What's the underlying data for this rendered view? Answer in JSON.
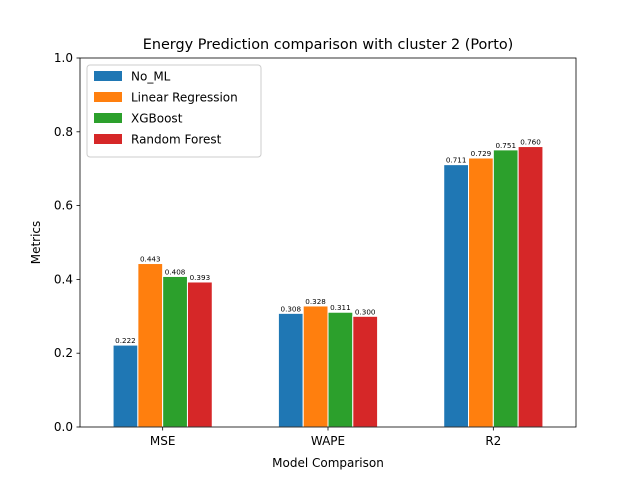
{
  "chart_data": {
    "type": "bar",
    "title": "Energy Prediction comparison with cluster 2 (Porto)",
    "xlabel": "Model Comparison",
    "ylabel": "Metrics",
    "categories": [
      "MSE",
      "WAPE",
      "R2"
    ],
    "ylim": [
      0,
      1.0
    ],
    "yticks": [
      "0.0",
      "0.2",
      "0.4",
      "0.6",
      "0.8",
      "1.0"
    ],
    "grid": false,
    "legend_position": "top-left",
    "series": [
      {
        "name": "No_ML",
        "color": "#1f77b4",
        "values": [
          0.222,
          0.308,
          0.711
        ],
        "labels": [
          "0.222",
          "0.308",
          "0.711"
        ]
      },
      {
        "name": "Linear Regression",
        "color": "#ff7f0e",
        "values": [
          0.443,
          0.328,
          0.729
        ],
        "labels": [
          "0.443",
          "0.328",
          "0.729"
        ]
      },
      {
        "name": "XGBoost",
        "color": "#2ca02c",
        "values": [
          0.408,
          0.311,
          0.751
        ],
        "labels": [
          "0.408",
          "0.311",
          "0.751"
        ]
      },
      {
        "name": "Random Forest",
        "color": "#d62728",
        "values": [
          0.393,
          0.3,
          0.76
        ],
        "labels": [
          "0.393",
          "0.300",
          "0.760"
        ]
      }
    ]
  }
}
